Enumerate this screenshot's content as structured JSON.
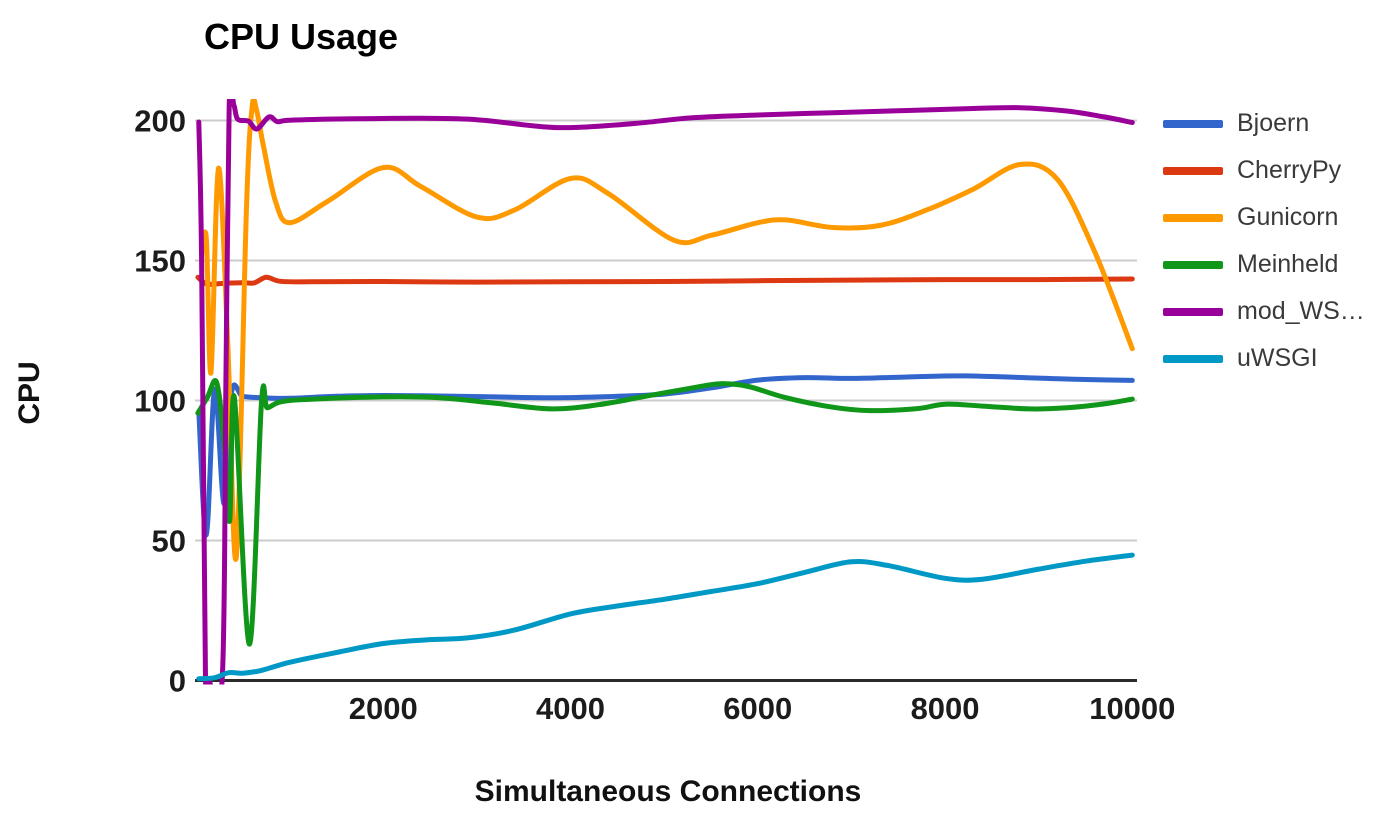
{
  "chart_data": {
    "type": "line",
    "title": "CPU Usage",
    "xlabel": "Simultaneous Connections",
    "ylabel": "CPU",
    "x_ticks": [
      2000,
      4000,
      6000,
      8000,
      10000
    ],
    "y_ticks": [
      0,
      50,
      100,
      150,
      200
    ],
    "x_range": [
      0,
      10050
    ],
    "y_range": [
      0,
      207.7
    ],
    "grid": true,
    "legend_position": "right",
    "colors": {
      "gridline": "#cccccc",
      "axis": "#2b2b2b",
      "tick_label": "#1c1c1c",
      "title": "#000000",
      "legend_text": "#3a3a3a",
      "background": "#ffffff"
    },
    "series": [
      {
        "name": "Bjoern",
        "color": "#3366CC",
        "points": [
          [
            30,
            96
          ],
          [
            110,
            52
          ],
          [
            200,
            104
          ],
          [
            300,
            63
          ],
          [
            380,
            103
          ],
          [
            500,
            101.5
          ],
          [
            700,
            101
          ],
          [
            1000,
            100.8
          ],
          [
            1500,
            101.5
          ],
          [
            2000,
            101.8
          ],
          [
            2600,
            101.6
          ],
          [
            3200,
            101.3
          ],
          [
            3800,
            101
          ],
          [
            4400,
            101.4
          ],
          [
            5000,
            102.3
          ],
          [
            5500,
            104.5
          ],
          [
            6000,
            107.3
          ],
          [
            6500,
            108.2
          ],
          [
            7000,
            107.9
          ],
          [
            7600,
            108.4
          ],
          [
            8200,
            108.8
          ],
          [
            9000,
            108
          ],
          [
            9500,
            107.5
          ],
          [
            10000,
            107.2
          ]
        ]
      },
      {
        "name": "CherryPy",
        "color": "#DC3912",
        "points": [
          [
            20,
            144
          ],
          [
            120,
            141.6
          ],
          [
            300,
            141.9
          ],
          [
            500,
            142.1
          ],
          [
            620,
            142
          ],
          [
            750,
            144
          ],
          [
            900,
            142.6
          ],
          [
            1200,
            142.4
          ],
          [
            2000,
            142.5
          ],
          [
            3000,
            142.3
          ],
          [
            4000,
            142.4
          ],
          [
            5000,
            142.5
          ],
          [
            6000,
            142.8
          ],
          [
            7000,
            143
          ],
          [
            8000,
            143.2
          ],
          [
            9000,
            143.2
          ],
          [
            10000,
            143.4
          ]
        ]
      },
      {
        "name": "Gunicorn",
        "color": "#FF9900",
        "points": [
          [
            60,
            152
          ],
          [
            110,
            158
          ],
          [
            160,
            110
          ],
          [
            240,
            183
          ],
          [
            340,
            120
          ],
          [
            430,
            44
          ],
          [
            540,
            170
          ],
          [
            600,
            205
          ],
          [
            645,
            204
          ],
          [
            720,
            191
          ],
          [
            850,
            171
          ],
          [
            1000,
            163.5
          ],
          [
            1400,
            171
          ],
          [
            2000,
            183.2
          ],
          [
            2400,
            176.5
          ],
          [
            3000,
            165.5
          ],
          [
            3400,
            168
          ],
          [
            4000,
            179.3
          ],
          [
            4400,
            174
          ],
          [
            5100,
            157.3
          ],
          [
            5500,
            159
          ],
          [
            6000,
            163.5
          ],
          [
            6300,
            164.5
          ],
          [
            6800,
            161.8
          ],
          [
            7300,
            162.5
          ],
          [
            7800,
            168
          ],
          [
            8300,
            175.5
          ],
          [
            8800,
            184.3
          ],
          [
            9200,
            179
          ],
          [
            9600,
            153
          ],
          [
            10000,
            118.5
          ]
        ]
      },
      {
        "name": "Meinheld",
        "color": "#109618",
        "points": [
          [
            20,
            95.5
          ],
          [
            120,
            101
          ],
          [
            220,
            106.5
          ],
          [
            300,
            85
          ],
          [
            360,
            57
          ],
          [
            410,
            101
          ],
          [
            570,
            13
          ],
          [
            700,
            99.5
          ],
          [
            760,
            97.4
          ],
          [
            900,
            99.5
          ],
          [
            1200,
            100.4
          ],
          [
            2000,
            101.3
          ],
          [
            2600,
            101
          ],
          [
            3200,
            99
          ],
          [
            3800,
            97
          ],
          [
            4300,
            98.5
          ],
          [
            4800,
            101.5
          ],
          [
            5300,
            104.5
          ],
          [
            5600,
            106
          ],
          [
            5900,
            105
          ],
          [
            6300,
            101
          ],
          [
            6800,
            97.6
          ],
          [
            7200,
            96.4
          ],
          [
            7700,
            97.1
          ],
          [
            8000,
            98.7
          ],
          [
            8400,
            98
          ],
          [
            8900,
            97
          ],
          [
            9300,
            97.4
          ],
          [
            9700,
            98.8
          ],
          [
            10000,
            100.5
          ]
        ]
      },
      {
        "name": "mod_WS…",
        "color": "#990099",
        "points": [
          [
            30,
            199.5
          ],
          [
            60,
            150
          ],
          [
            100,
            4
          ],
          [
            130,
            0.5
          ],
          [
            280,
            0.5
          ],
          [
            320,
            110
          ],
          [
            355,
            205.5
          ],
          [
            405,
            205.5
          ],
          [
            445,
            200.5
          ],
          [
            560,
            199.8
          ],
          [
            650,
            197
          ],
          [
            780,
            201.3
          ],
          [
            870,
            199.6
          ],
          [
            1000,
            200.1
          ],
          [
            1600,
            200.6
          ],
          [
            2400,
            200.8
          ],
          [
            3000,
            200.3
          ],
          [
            3700,
            197.8
          ],
          [
            4100,
            197.6
          ],
          [
            4700,
            199
          ],
          [
            5300,
            201
          ],
          [
            6000,
            202
          ],
          [
            6800,
            202.8
          ],
          [
            7600,
            203.6
          ],
          [
            8300,
            204.3
          ],
          [
            8800,
            204.6
          ],
          [
            9300,
            203.4
          ],
          [
            9700,
            201.3
          ],
          [
            10000,
            199.3
          ]
        ]
      },
      {
        "name": "uWSGI",
        "color": "#0099C6",
        "points": [
          [
            30,
            0.6
          ],
          [
            200,
            1
          ],
          [
            350,
            2.8
          ],
          [
            500,
            2.6
          ],
          [
            700,
            3.6
          ],
          [
            1000,
            6.5
          ],
          [
            1500,
            10
          ],
          [
            2000,
            13.2
          ],
          [
            2500,
            14.6
          ],
          [
            2900,
            15.2
          ],
          [
            3400,
            18
          ],
          [
            4000,
            23.8
          ],
          [
            4500,
            26.6
          ],
          [
            5000,
            29
          ],
          [
            5500,
            31.8
          ],
          [
            6000,
            34.6
          ],
          [
            6500,
            38.6
          ],
          [
            7000,
            42.4
          ],
          [
            7400,
            41
          ],
          [
            8000,
            36.5
          ],
          [
            8400,
            36.2
          ],
          [
            9000,
            39.8
          ],
          [
            9500,
            42.6
          ],
          [
            10000,
            44.8
          ]
        ]
      }
    ]
  }
}
